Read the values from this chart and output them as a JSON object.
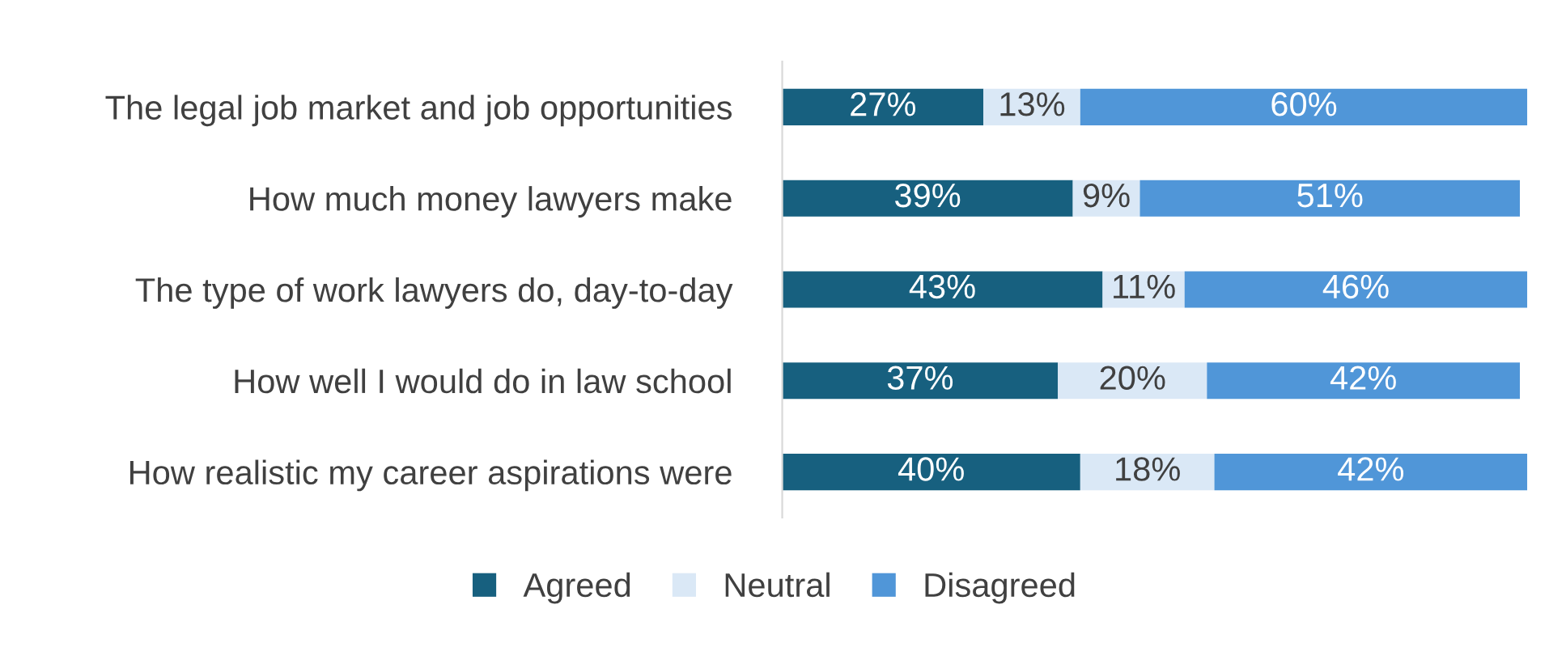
{
  "chart_data": {
    "type": "bar",
    "orientation": "horizontal",
    "stacked": true,
    "categories": [
      "The legal job market and job opportunities",
      "How much money lawyers make",
      "The type of work lawyers do, day-to-day",
      "How well I would do in law school",
      "How realistic my career aspirations were"
    ],
    "series": [
      {
        "name": "Agreed",
        "color": "#17607f",
        "values": [
          27,
          39,
          43,
          37,
          40
        ],
        "value_labels": [
          "27%",
          "39%",
          "43%",
          "37%",
          "40%"
        ]
      },
      {
        "name": "Neutral",
        "color": "#dae8f6",
        "values": [
          13,
          9,
          11,
          20,
          18
        ],
        "value_labels": [
          "13%",
          "9%",
          "11%",
          "20%",
          "18%"
        ]
      },
      {
        "name": "Disagreed",
        "color": "#5096d8",
        "values": [
          60,
          51,
          46,
          42,
          42
        ],
        "value_labels": [
          "60%",
          "51%",
          "46%",
          "42%",
          "42%"
        ]
      }
    ],
    "xlim": [
      0,
      100
    ],
    "tick_labels": "y",
    "legend": "bottom",
    "grid": false
  }
}
